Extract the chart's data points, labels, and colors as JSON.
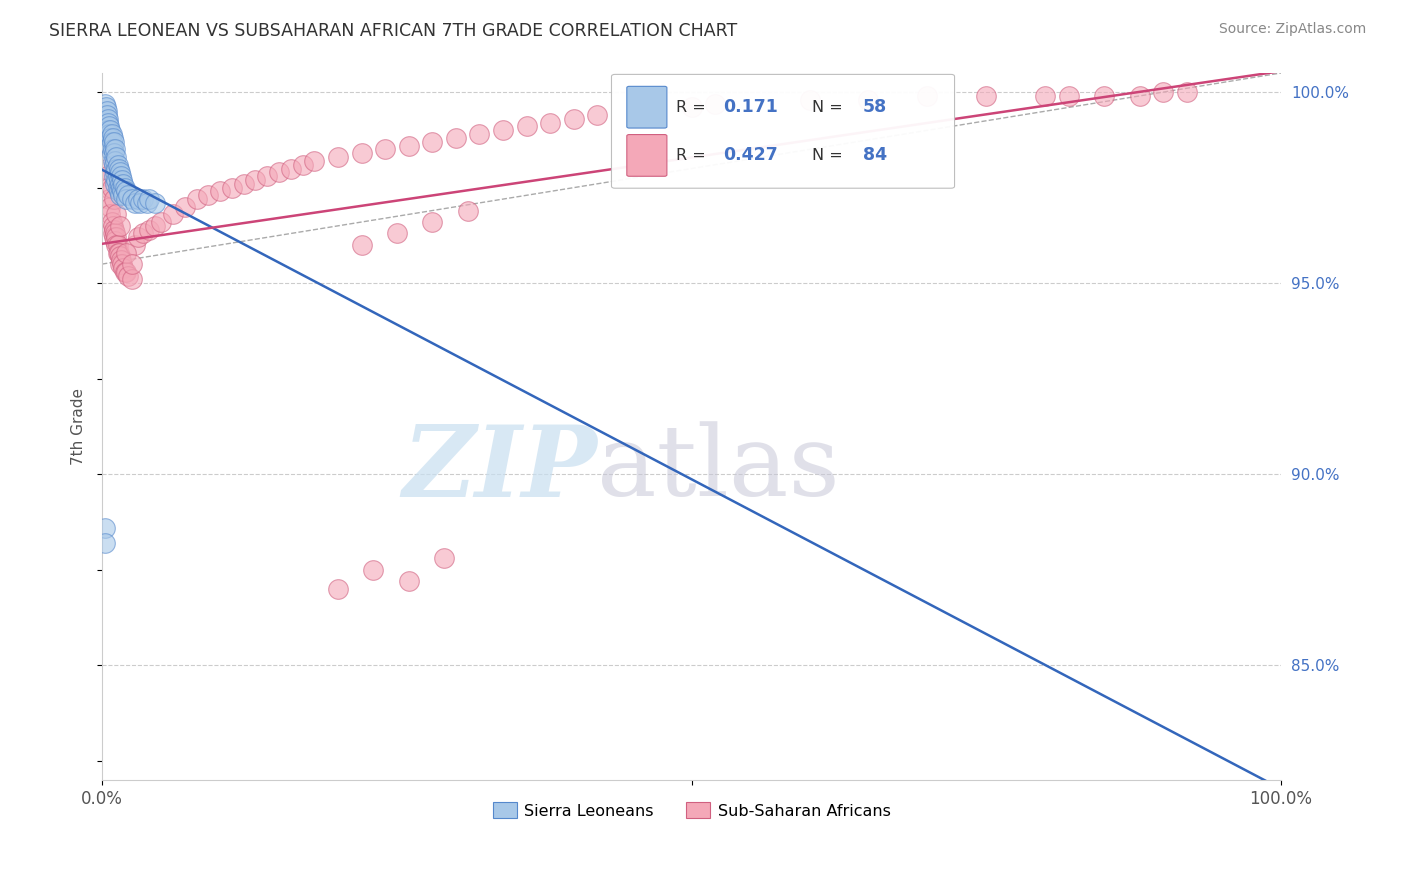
{
  "title": "SIERRA LEONEAN VS SUBSAHARAN AFRICAN 7TH GRADE CORRELATION CHART",
  "source": "Source: ZipAtlas.com",
  "ylabel": "7th Grade",
  "xlim": [
    0.0,
    1.0
  ],
  "ylim": [
    0.82,
    1.005
  ],
  "y_ticks_right": [
    0.85,
    0.9,
    0.95,
    1.0
  ],
  "y_tick_labels_right": [
    "85.0%",
    "90.0%",
    "95.0%",
    "100.0%"
  ],
  "legend_blue_label": "Sierra Leoneans",
  "legend_pink_label": "Sub-Saharan Africans",
  "R_blue": "0.171",
  "N_blue": "58",
  "R_pink": "0.427",
  "N_pink": "84",
  "blue_color": "#a8c8e8",
  "pink_color": "#f4a8b8",
  "blue_edge_color": "#5588cc",
  "pink_edge_color": "#d06080",
  "blue_line_color": "#3366bb",
  "pink_line_color": "#cc4477",
  "background_color": "#ffffff",
  "sierra_leonean_x": [
    0.002,
    0.003,
    0.004,
    0.004,
    0.005,
    0.005,
    0.005,
    0.006,
    0.006,
    0.007,
    0.007,
    0.007,
    0.008,
    0.008,
    0.008,
    0.009,
    0.009,
    0.009,
    0.01,
    0.01,
    0.01,
    0.01,
    0.011,
    0.011,
    0.011,
    0.011,
    0.012,
    0.012,
    0.012,
    0.013,
    0.013,
    0.013,
    0.014,
    0.014,
    0.014,
    0.015,
    0.015,
    0.015,
    0.016,
    0.016,
    0.017,
    0.017,
    0.018,
    0.018,
    0.019,
    0.02,
    0.02,
    0.022,
    0.025,
    0.028,
    0.03,
    0.032,
    0.035,
    0.038,
    0.04,
    0.045,
    0.002,
    0.002
  ],
  "sierra_leonean_y": [
    0.997,
    0.996,
    0.995,
    0.994,
    0.993,
    0.992,
    0.99,
    0.991,
    0.989,
    0.99,
    0.988,
    0.986,
    0.989,
    0.987,
    0.984,
    0.988,
    0.985,
    0.982,
    0.987,
    0.984,
    0.981,
    0.978,
    0.985,
    0.982,
    0.979,
    0.976,
    0.983,
    0.98,
    0.977,
    0.981,
    0.978,
    0.975,
    0.98,
    0.977,
    0.974,
    0.979,
    0.976,
    0.973,
    0.978,
    0.975,
    0.977,
    0.974,
    0.976,
    0.973,
    0.975,
    0.974,
    0.972,
    0.973,
    0.972,
    0.971,
    0.972,
    0.971,
    0.972,
    0.971,
    0.972,
    0.971,
    0.886,
    0.882
  ],
  "subsaharan_x": [
    0.003,
    0.004,
    0.005,
    0.006,
    0.007,
    0.007,
    0.008,
    0.009,
    0.009,
    0.01,
    0.01,
    0.011,
    0.011,
    0.012,
    0.012,
    0.013,
    0.013,
    0.014,
    0.015,
    0.015,
    0.016,
    0.017,
    0.018,
    0.019,
    0.02,
    0.022,
    0.025,
    0.028,
    0.03,
    0.035,
    0.04,
    0.045,
    0.05,
    0.06,
    0.07,
    0.08,
    0.09,
    0.1,
    0.11,
    0.12,
    0.13,
    0.14,
    0.15,
    0.16,
    0.17,
    0.18,
    0.2,
    0.22,
    0.24,
    0.26,
    0.28,
    0.3,
    0.32,
    0.34,
    0.36,
    0.38,
    0.4,
    0.42,
    0.5,
    0.52,
    0.6,
    0.65,
    0.7,
    0.75,
    0.8,
    0.82,
    0.85,
    0.88,
    0.9,
    0.92,
    0.008,
    0.01,
    0.012,
    0.015,
    0.02,
    0.025,
    0.22,
    0.25,
    0.28,
    0.31,
    0.2,
    0.23,
    0.26,
    0.29
  ],
  "subsaharan_y": [
    0.98,
    0.978,
    0.975,
    0.972,
    0.97,
    0.968,
    0.966,
    0.965,
    0.963,
    0.964,
    0.962,
    0.963,
    0.961,
    0.962,
    0.96,
    0.96,
    0.958,
    0.958,
    0.957,
    0.955,
    0.956,
    0.955,
    0.954,
    0.953,
    0.953,
    0.952,
    0.951,
    0.96,
    0.962,
    0.963,
    0.964,
    0.965,
    0.966,
    0.968,
    0.97,
    0.972,
    0.973,
    0.974,
    0.975,
    0.976,
    0.977,
    0.978,
    0.979,
    0.98,
    0.981,
    0.982,
    0.983,
    0.984,
    0.985,
    0.986,
    0.987,
    0.988,
    0.989,
    0.99,
    0.991,
    0.992,
    0.993,
    0.994,
    0.996,
    0.997,
    0.998,
    0.998,
    0.999,
    0.999,
    0.999,
    0.999,
    0.999,
    0.999,
    1.0,
    1.0,
    0.975,
    0.972,
    0.968,
    0.965,
    0.958,
    0.955,
    0.96,
    0.963,
    0.966,
    0.969,
    0.87,
    0.875,
    0.872,
    0.878
  ]
}
